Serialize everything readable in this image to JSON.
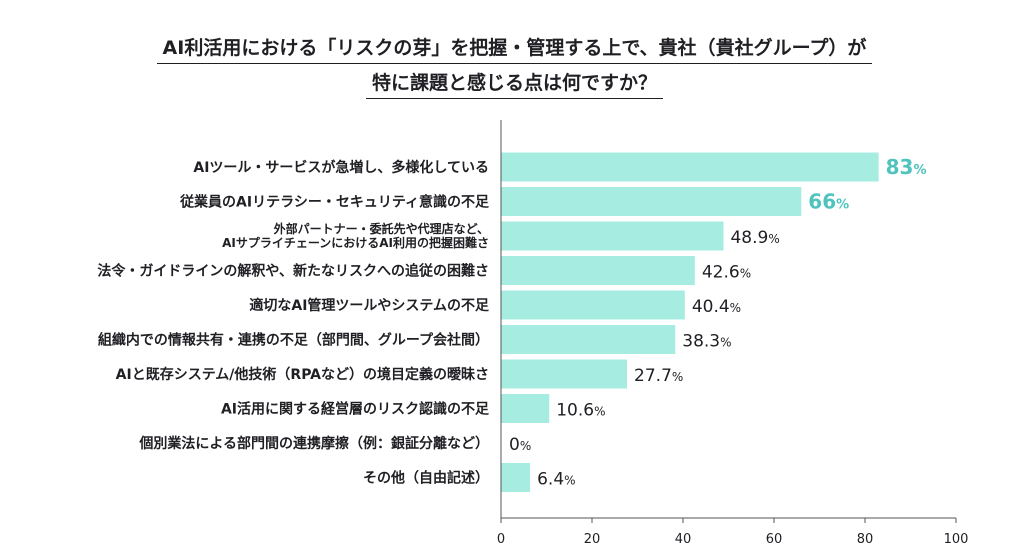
{
  "title_line1": "AI利活用における「リスクの芽」を把握・管理する上で、貴社（貴社グループ）が",
  "title_line2": "特に課題と感じる点は何ですか？",
  "colors": {
    "bar": "#a6ece0",
    "highlight_text": "#4fc3bd",
    "text": "#1f1f24",
    "axis": "#555555"
  },
  "chart_data": {
    "type": "bar",
    "orientation": "horizontal",
    "title": "AI利活用における「リスクの芽」を把握・管理する上で、貴社（貴社グループ）が特に課題と感じる点は何ですか？",
    "unit": "%",
    "categories": [
      [
        "AIツール・サービスが急増し、多様化している"
      ],
      [
        "従業員のAIリテラシー・セキュリティ意識の不足"
      ],
      [
        "外部パートナー・委託先や代理店など、",
        "AIサプライチェーンにおけるAI利用の把握困難さ"
      ],
      [
        "法令・ガイドラインの解釈や、新たなリスクへの追従の困難さ"
      ],
      [
        "適切なAI管理ツールやシステムの不足"
      ],
      [
        "組織内での情報共有・連携の不足（部門間、グループ会社間）"
      ],
      [
        "AIと既存システム/他技術（RPAなど）の境目定義の曖昧さ"
      ],
      [
        "AI活用に関する経営層のリスク認識の不足"
      ],
      [
        "個別業法による部門間の連携摩擦（例：銀証分離など）"
      ],
      [
        "その他（自由記述）"
      ]
    ],
    "values": [
      83,
      66,
      48.9,
      42.6,
      40.4,
      38.3,
      27.7,
      10.6,
      0,
      6.4
    ],
    "value_labels": [
      "83",
      "66",
      "48.9",
      "42.6",
      "40.4",
      "38.3",
      "27.7",
      "10.6",
      "0",
      "6.4"
    ],
    "highlighted": [
      true,
      true,
      false,
      false,
      false,
      false,
      false,
      false,
      false,
      false
    ],
    "xlim": [
      0,
      100
    ],
    "xticks": [
      0,
      20,
      40,
      60,
      80,
      100
    ],
    "grid": false,
    "legend": "none"
  }
}
